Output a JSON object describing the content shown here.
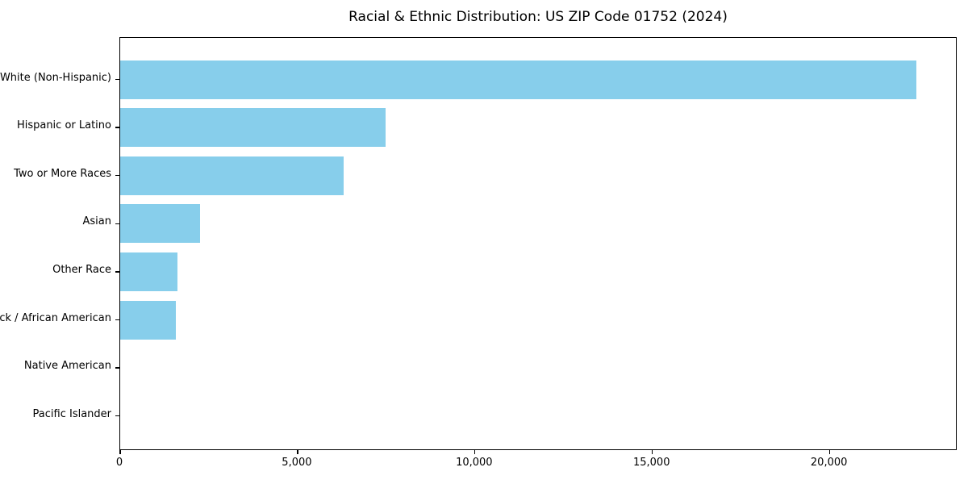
{
  "chart_data": {
    "type": "bar",
    "orientation": "horizontal",
    "title": "Racial & Ethnic Distribution: US ZIP Code 01752 (2024)",
    "xlabel": "",
    "ylabel": "",
    "categories": [
      "White (Non-Hispanic)",
      "Hispanic or Latino",
      "Two or More Races",
      "Asian",
      "Other Race",
      "Black / African American",
      "Native American",
      "Pacific Islander"
    ],
    "values": [
      22450,
      7470,
      6290,
      2240,
      1620,
      1560,
      0,
      0
    ],
    "xlim": [
      0,
      23600
    ],
    "xticks": [
      0,
      5000,
      10000,
      15000,
      20000
    ],
    "xtick_labels": [
      "0",
      "5,000",
      "10,000",
      "15,000",
      "20,000"
    ],
    "bar_color": "#87CEEB",
    "axis_color": "#000000",
    "background_color": "#ffffff",
    "grid": false,
    "legend": false
  }
}
